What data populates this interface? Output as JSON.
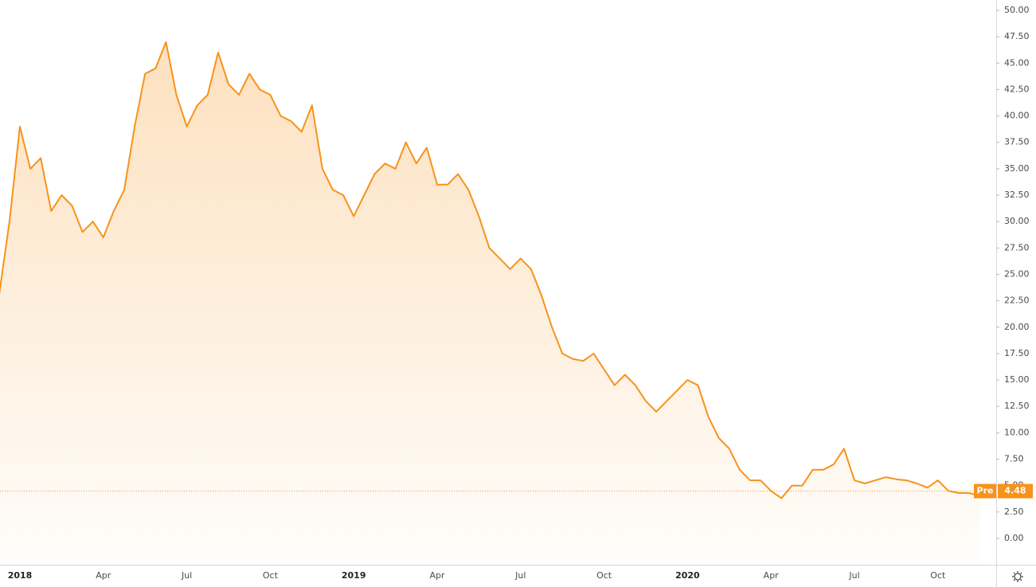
{
  "chart_data": {
    "type": "area",
    "color": "#f7931a",
    "categories": [
      null,
      null,
      "2018",
      null,
      null,
      null,
      null,
      null,
      null,
      null,
      "Apr",
      null,
      null,
      null,
      null,
      null,
      null,
      null,
      "Jul",
      null,
      null,
      null,
      null,
      null,
      null,
      null,
      "Oct",
      null,
      null,
      null,
      null,
      null,
      null,
      null,
      "2019",
      null,
      null,
      null,
      null,
      null,
      null,
      null,
      "Apr",
      null,
      null,
      null,
      null,
      null,
      null,
      null,
      "Jul",
      null,
      null,
      null,
      null,
      null,
      null,
      null,
      "Oct",
      null,
      null,
      null,
      null,
      null,
      null,
      null,
      "2020",
      null,
      null,
      null,
      null,
      null,
      null,
      null,
      "Apr",
      null,
      null,
      null,
      null,
      null,
      null,
      null,
      "Jul",
      null,
      null,
      null,
      null,
      null,
      null,
      null,
      "Oct",
      null,
      null,
      null,
      null
    ],
    "values": [
      23,
      30,
      39,
      35,
      36,
      31,
      32.5,
      31.5,
      29,
      30,
      28.5,
      31,
      33,
      39,
      44,
      44.5,
      47,
      42,
      39,
      41,
      42,
      46,
      43,
      42,
      44,
      42.5,
      42,
      40,
      39.5,
      38.5,
      41,
      35,
      33,
      32.5,
      30.5,
      32.5,
      34.5,
      35.5,
      35,
      37.5,
      35.5,
      37,
      33.5,
      33.5,
      34.5,
      33,
      30.5,
      27.5,
      26.5,
      25.5,
      26.5,
      25.5,
      23,
      20,
      17.5,
      17,
      16.8,
      17.5,
      16,
      14.5,
      15.5,
      14.5,
      13,
      12,
      13,
      14,
      15,
      14.5,
      11.5,
      9.5,
      8.5,
      6.5,
      5.5,
      5.5,
      4.5,
      3.8,
      5,
      5,
      6.5,
      6.5,
      7,
      8.5,
      5.5,
      5.2,
      5.5,
      5.8,
      5.6,
      5.5,
      5.2,
      4.8,
      5.5,
      4.5,
      4.3,
      4.3,
      4
    ],
    "ylim": [
      -2.49,
      50.98
    ],
    "yticks": [
      {
        "value": 0,
        "label": "0.00"
      },
      {
        "value": 2.5,
        "label": "2.50"
      },
      {
        "value": 5,
        "label": "5.00"
      },
      {
        "value": 7.5,
        "label": "7.50"
      },
      {
        "value": 10,
        "label": "10.00"
      },
      {
        "value": 12.5,
        "label": "12.50"
      },
      {
        "value": 15,
        "label": "15.00"
      },
      {
        "value": 17.5,
        "label": "17.50"
      },
      {
        "value": 20,
        "label": "20.00"
      },
      {
        "value": 22.5,
        "label": "22.50"
      },
      {
        "value": 25,
        "label": "25.00"
      },
      {
        "value": 27.5,
        "label": "27.50"
      },
      {
        "value": 30,
        "label": "30.00"
      },
      {
        "value": 32.5,
        "label": "32.50"
      },
      {
        "value": 35,
        "label": "35.00"
      },
      {
        "value": 37.5,
        "label": "37.50"
      },
      {
        "value": 40,
        "label": "40.00"
      },
      {
        "value": 42.5,
        "label": "42.50"
      },
      {
        "value": 45,
        "label": "45.00"
      },
      {
        "value": 47.5,
        "label": "47.50"
      },
      {
        "value": 50,
        "label": "50.00"
      }
    ],
    "pre_market": {
      "label": "Pre",
      "value": 4.48
    }
  }
}
